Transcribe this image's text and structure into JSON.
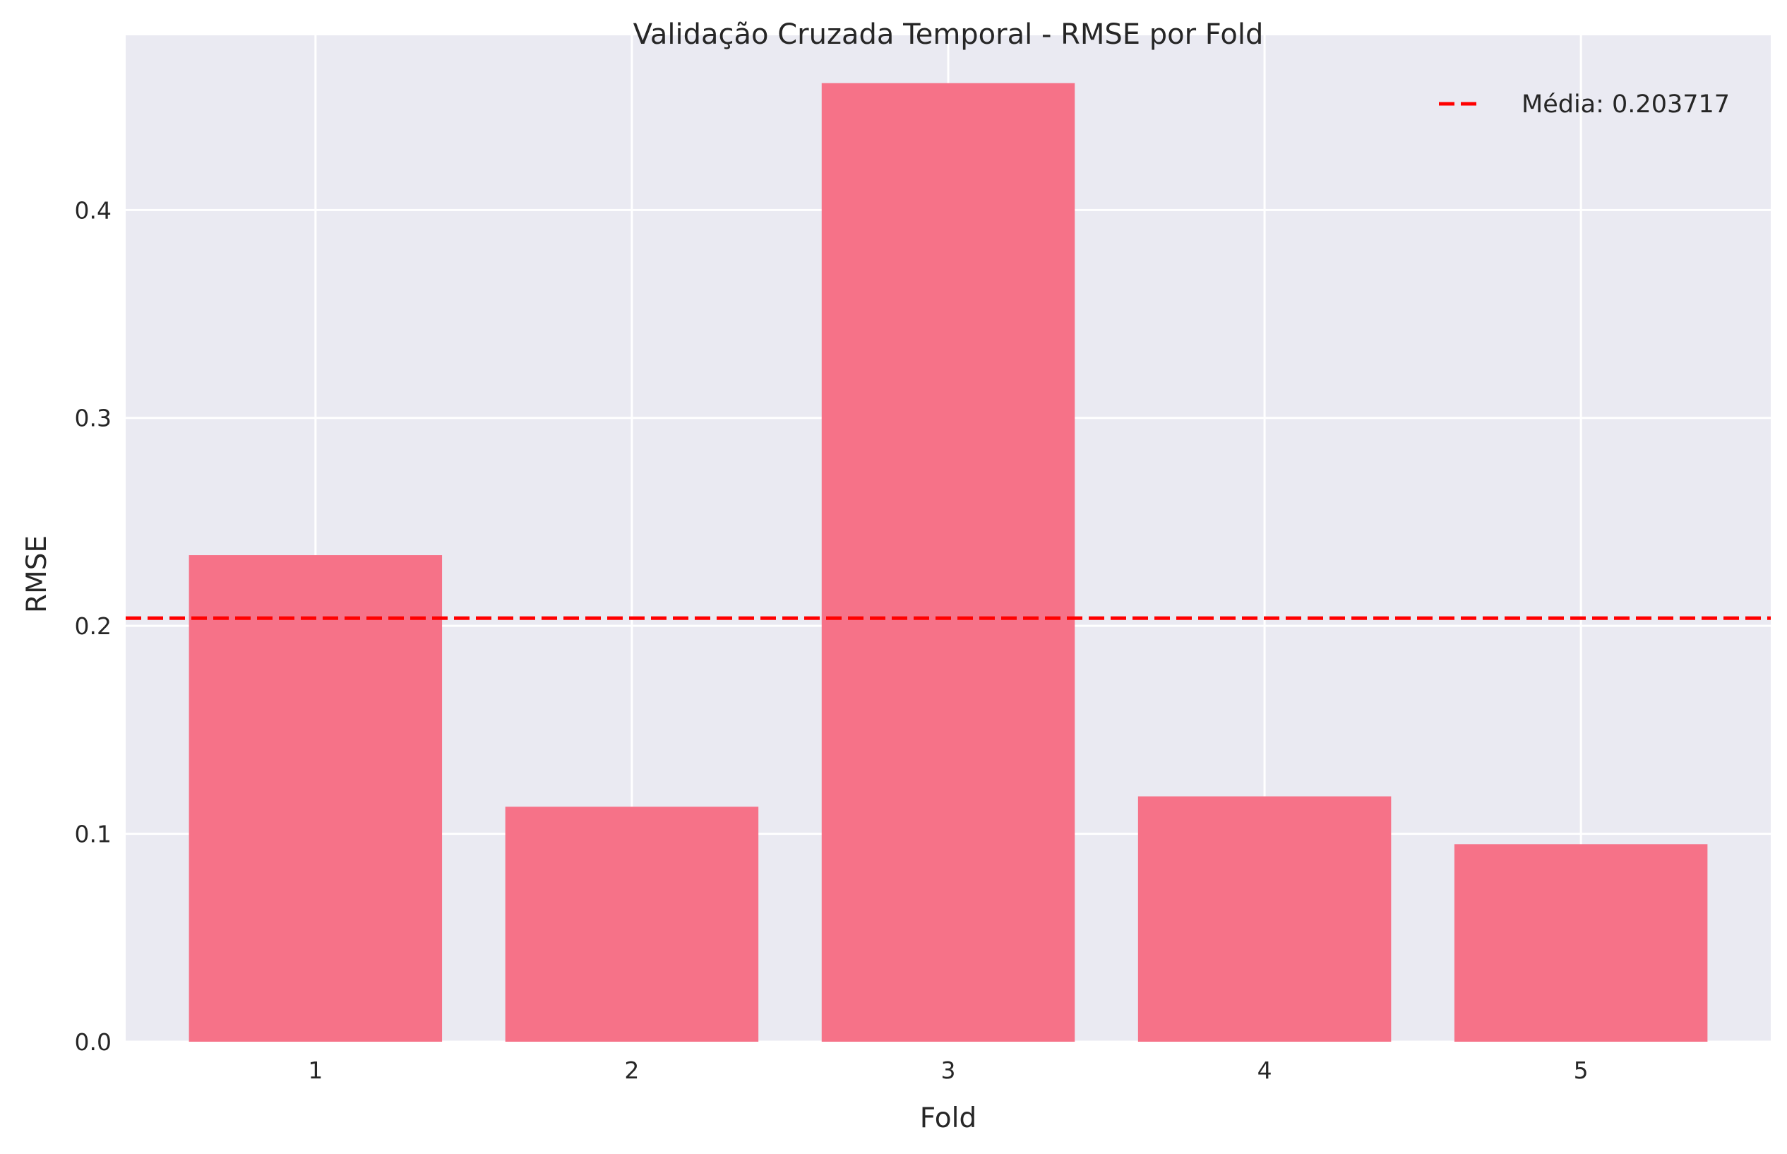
{
  "chart_data": {
    "type": "bar",
    "title": "Validação Cruzada Temporal - RMSE por Fold",
    "xlabel": "Fold",
    "ylabel": "RMSE",
    "categories": [
      "1",
      "2",
      "3",
      "4",
      "5"
    ],
    "values": [
      0.234,
      0.113,
      0.461,
      0.118,
      0.095
    ],
    "ylim": [
      0,
      0.484
    ],
    "yticks": [
      "0.0",
      "0.1",
      "0.2",
      "0.3",
      "0.4"
    ],
    "ytick_values": [
      0.0,
      0.1,
      0.2,
      0.3,
      0.4
    ],
    "grid": true,
    "bar_color": "#f67288",
    "background_color": "#eaeaf2",
    "mean_line": {
      "label": "Média: 0.203717",
      "value": 0.203717,
      "color": "#ff0000",
      "style": "dashed"
    },
    "legend_position": "top-right"
  }
}
